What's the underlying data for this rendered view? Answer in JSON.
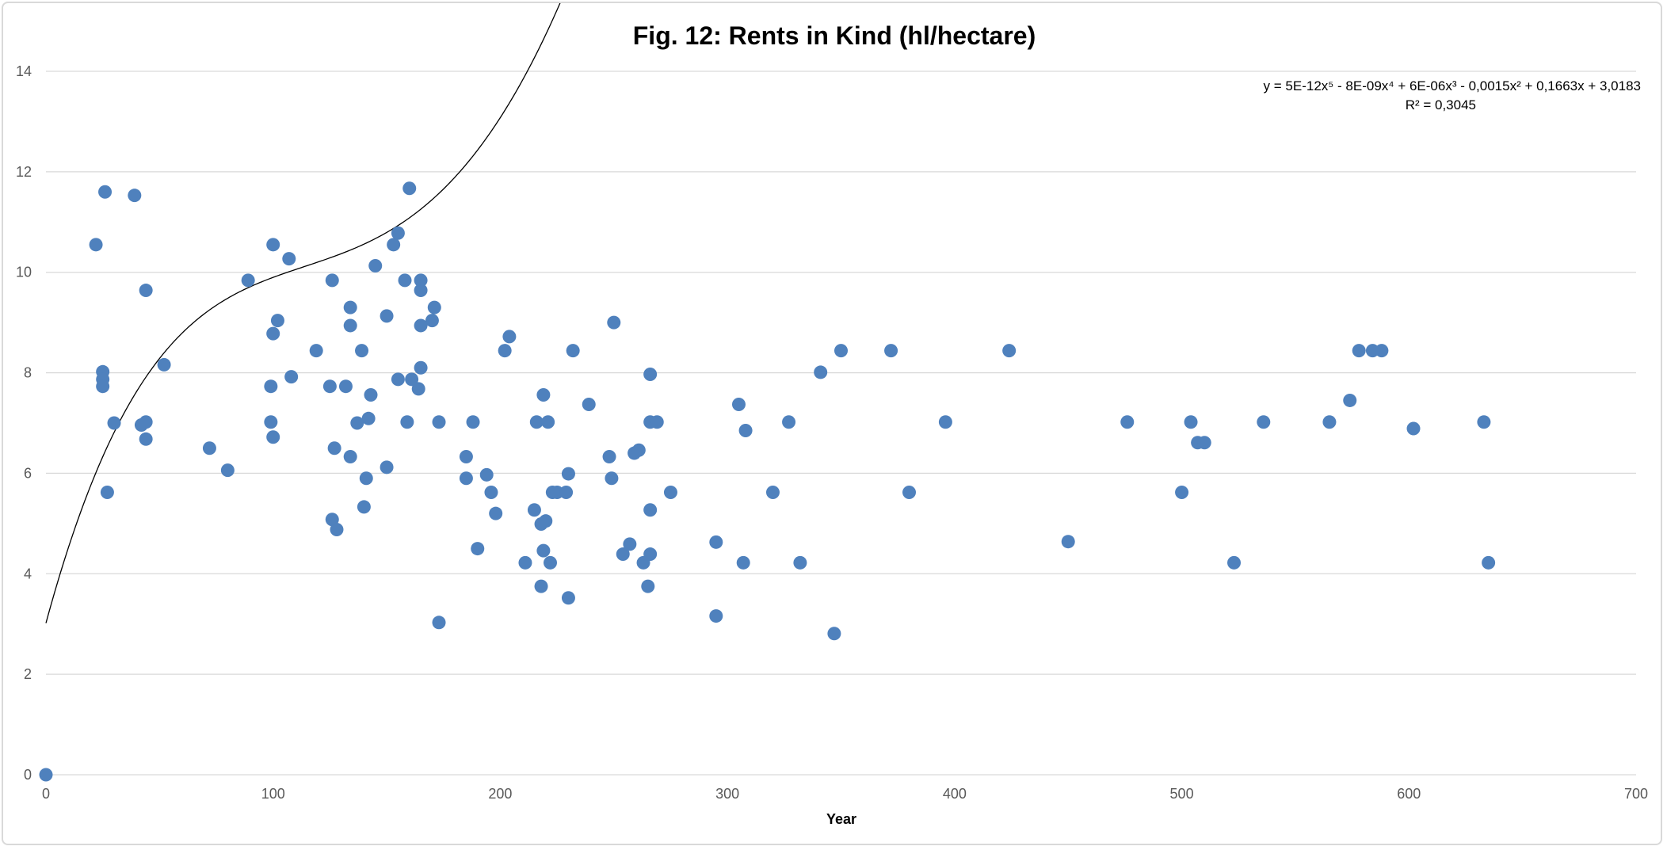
{
  "chart_data": {
    "type": "scatter",
    "title": "Fig. 12: Rents in Kind (hl/hectare)",
    "xlabel": "Year",
    "ylabel": "",
    "xlim": [
      0,
      700
    ],
    "ylim": [
      0,
      14
    ],
    "x_ticks": [
      0,
      100,
      200,
      300,
      400,
      500,
      600,
      700
    ],
    "y_ticks": [
      0,
      2,
      4,
      6,
      8,
      10,
      12,
      14
    ],
    "x_tick_labels": [
      "0",
      "100",
      "200",
      "300",
      "400",
      "500",
      "600",
      "700"
    ],
    "y_tick_labels": [
      "0",
      "2",
      "4",
      "6",
      "8",
      "10",
      "12",
      "14"
    ],
    "grid": "horizontal",
    "legend": "none",
    "point_color": "#4f81bd",
    "trendline": {
      "type": "polynomial",
      "order": 5,
      "equation_label": "y = 5E-12x⁵ - 8E-09x⁴ + 6E-06x³ - 0,0015x² + 0,1663x + 3,0183",
      "r2_label": "R² = 0,3045",
      "coefficients": [
        3.0183,
        0.1663,
        -0.0015,
        6e-06,
        -8e-09,
        5e-12
      ],
      "x_range": [
        0,
        633
      ],
      "color": "#000000"
    },
    "points": [
      [
        0,
        0
      ],
      [
        22,
        10.55
      ],
      [
        26,
        11.6
      ],
      [
        25,
        8.02
      ],
      [
        25,
        7.87
      ],
      [
        25,
        7.73
      ],
      [
        27,
        5.62
      ],
      [
        30,
        7.0
      ],
      [
        39,
        11.53
      ],
      [
        42,
        6.96
      ],
      [
        44,
        7.02
      ],
      [
        44,
        9.64
      ],
      [
        44,
        6.68
      ],
      [
        52,
        8.16
      ],
      [
        72,
        6.5
      ],
      [
        80,
        6.06
      ],
      [
        89,
        9.84
      ],
      [
        99,
        7.73
      ],
      [
        99,
        7.02
      ],
      [
        100,
        10.55
      ],
      [
        100,
        8.78
      ],
      [
        100,
        6.72
      ],
      [
        102,
        9.04
      ],
      [
        107,
        10.27
      ],
      [
        108,
        7.92
      ],
      [
        119,
        8.44
      ],
      [
        125,
        7.73
      ],
      [
        126,
        9.84
      ],
      [
        126,
        5.08
      ],
      [
        127,
        6.5
      ],
      [
        128,
        4.88
      ],
      [
        132,
        7.73
      ],
      [
        134,
        8.94
      ],
      [
        134,
        9.3
      ],
      [
        134,
        6.33
      ],
      [
        137,
        7.0
      ],
      [
        139,
        8.44
      ],
      [
        140,
        5.33
      ],
      [
        141,
        5.9
      ],
      [
        142,
        7.09
      ],
      [
        143,
        7.56
      ],
      [
        145,
        10.13
      ],
      [
        150,
        9.13
      ],
      [
        150,
        6.12
      ],
      [
        153,
        10.55
      ],
      [
        155,
        10.78
      ],
      [
        155,
        7.87
      ],
      [
        158,
        9.84
      ],
      [
        159,
        7.02
      ],
      [
        160,
        11.67
      ],
      [
        161,
        7.87
      ],
      [
        164,
        7.68
      ],
      [
        165,
        9.84
      ],
      [
        165,
        9.64
      ],
      [
        165,
        8.94
      ],
      [
        165,
        8.1
      ],
      [
        170,
        9.04
      ],
      [
        171,
        9.3
      ],
      [
        173,
        7.02
      ],
      [
        173,
        3.03
      ],
      [
        185,
        6.33
      ],
      [
        185,
        5.9
      ],
      [
        188,
        7.02
      ],
      [
        190,
        4.5
      ],
      [
        194,
        5.97
      ],
      [
        196,
        5.62
      ],
      [
        198,
        5.2
      ],
      [
        202,
        8.44
      ],
      [
        204,
        8.72
      ],
      [
        211,
        4.22
      ],
      [
        215,
        5.27
      ],
      [
        216,
        7.02
      ],
      [
        218,
        3.75
      ],
      [
        218,
        4.99
      ],
      [
        219,
        4.46
      ],
      [
        219,
        7.56
      ],
      [
        220,
        5.05
      ],
      [
        221,
        7.02
      ],
      [
        222,
        4.22
      ],
      [
        223,
        5.62
      ],
      [
        225,
        5.62
      ],
      [
        229,
        5.62
      ],
      [
        230,
        3.52
      ],
      [
        230,
        5.99
      ],
      [
        232,
        8.44
      ],
      [
        239,
        7.37
      ],
      [
        248,
        6.33
      ],
      [
        249,
        5.9
      ],
      [
        250,
        9.0
      ],
      [
        254,
        4.39
      ],
      [
        257,
        4.59
      ],
      [
        259,
        6.4
      ],
      [
        261,
        6.46
      ],
      [
        263,
        4.22
      ],
      [
        265,
        3.75
      ],
      [
        266,
        7.02
      ],
      [
        266,
        7.97
      ],
      [
        266,
        5.27
      ],
      [
        266,
        4.39
      ],
      [
        269,
        7.02
      ],
      [
        275,
        5.62
      ],
      [
        295,
        4.63
      ],
      [
        295,
        3.16
      ],
      [
        305,
        7.37
      ],
      [
        307,
        4.22
      ],
      [
        308,
        6.85
      ],
      [
        320,
        5.62
      ],
      [
        327,
        7.02
      ],
      [
        332,
        4.22
      ],
      [
        341,
        8.01
      ],
      [
        347,
        2.81
      ],
      [
        350,
        8.44
      ],
      [
        372,
        8.44
      ],
      [
        380,
        5.62
      ],
      [
        396,
        7.02
      ],
      [
        424,
        8.44
      ],
      [
        450,
        4.64
      ],
      [
        476,
        7.02
      ],
      [
        500,
        5.62
      ],
      [
        504,
        7.02
      ],
      [
        507,
        6.61
      ],
      [
        510,
        6.61
      ],
      [
        523,
        4.22
      ],
      [
        536,
        7.02
      ],
      [
        565,
        7.02
      ],
      [
        574,
        7.45
      ],
      [
        578,
        8.44
      ],
      [
        584,
        8.44
      ],
      [
        588,
        8.44
      ],
      [
        602,
        6.89
      ],
      [
        633,
        7.02
      ],
      [
        635,
        4.22
      ]
    ]
  }
}
